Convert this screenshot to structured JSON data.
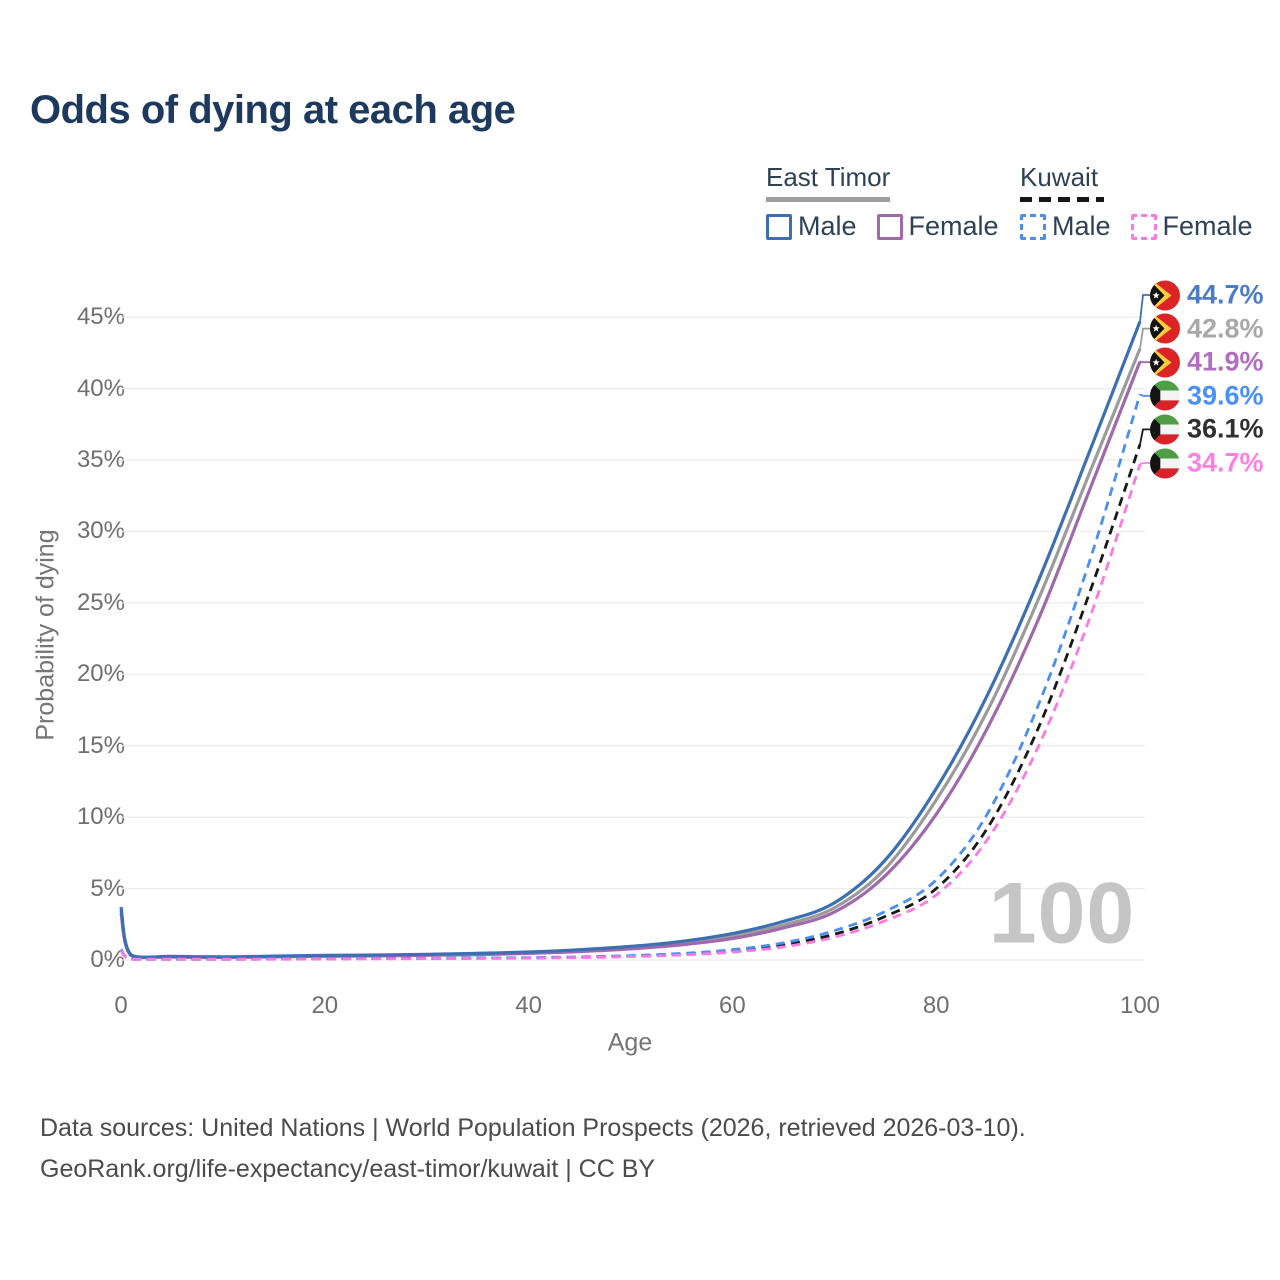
{
  "title": "Odds of dying at each age",
  "legend": {
    "groups": [
      {
        "name": "East Timor",
        "line_style": "solid",
        "line_color": "#9b9b9b",
        "items": [
          {
            "label": "Male",
            "color": "#3d6fb3"
          },
          {
            "label": "Female",
            "color": "#a069ac"
          }
        ]
      },
      {
        "name": "Kuwait",
        "line_style": "dashed",
        "line_color": "#161616",
        "items": [
          {
            "label": "Male",
            "color": "#4a8ef2"
          },
          {
            "label": "Female",
            "color": "#fb7ae2"
          }
        ]
      }
    ]
  },
  "chart_data": {
    "type": "line",
    "title": "Odds of dying at each age",
    "xlabel": "Age",
    "ylabel": "Probability of dying",
    "xlim": [
      0,
      100
    ],
    "ylim": [
      0,
      45
    ],
    "grid": "horizontal",
    "legend_position": "top-right",
    "watermark": "100",
    "xtick_labels": [
      "0",
      "20",
      "40",
      "60",
      "80",
      "100"
    ],
    "ytick_labels": [
      "0%",
      "5%",
      "10%",
      "15%",
      "20%",
      "25%",
      "30%",
      "35%",
      "40%",
      "45%"
    ],
    "x": [
      0,
      1,
      5,
      10,
      15,
      20,
      25,
      30,
      35,
      40,
      45,
      50,
      55,
      60,
      65,
      70,
      75,
      80,
      85,
      90,
      95,
      100
    ],
    "series": [
      {
        "name": "East Timor Male",
        "country": "East Timor",
        "sex": "Male",
        "flag": "east-timor",
        "color": "#3d6fb3",
        "label_color": "#4a7cc7",
        "dash": false,
        "end_label": "44.7%",
        "values": [
          3.7,
          0.35,
          0.25,
          0.22,
          0.27,
          0.32,
          0.35,
          0.4,
          0.47,
          0.56,
          0.72,
          0.95,
          1.3,
          1.85,
          2.7,
          4.0,
          7.0,
          12.0,
          18.5,
          26.5,
          35.5,
          44.7
        ]
      },
      {
        "name": "East Timor Both sexes",
        "country": "East Timor",
        "sex": "Both",
        "flag": "east-timor",
        "color": "#9b9b9b",
        "label_color": "#a8a8a8",
        "dash": false,
        "end_label": "42.8%",
        "values": [
          3.5,
          0.32,
          0.23,
          0.2,
          0.24,
          0.29,
          0.32,
          0.36,
          0.42,
          0.51,
          0.65,
          0.86,
          1.17,
          1.66,
          2.45,
          3.65,
          6.4,
          11.2,
          17.4,
          25.2,
          34.0,
          42.8
        ]
      },
      {
        "name": "East Timor Female",
        "country": "East Timor",
        "sex": "Female",
        "flag": "east-timor",
        "color": "#a069ac",
        "label_color": "#b16ec0",
        "dash": false,
        "end_label": "41.9%",
        "values": [
          3.3,
          0.3,
          0.21,
          0.18,
          0.22,
          0.26,
          0.29,
          0.33,
          0.38,
          0.46,
          0.59,
          0.78,
          1.06,
          1.5,
          2.25,
          3.35,
          5.9,
          10.2,
          16.2,
          23.8,
          32.8,
          41.9
        ]
      },
      {
        "name": "Kuwait Male",
        "country": "Kuwait",
        "sex": "Male",
        "flag": "kuwait",
        "color": "#4a8ef2",
        "label_color": "#4a90fa",
        "dash": true,
        "end_label": "39.6%",
        "values": [
          0.75,
          0.06,
          0.045,
          0.045,
          0.07,
          0.1,
          0.11,
          0.12,
          0.14,
          0.17,
          0.22,
          0.31,
          0.46,
          0.72,
          1.2,
          2.05,
          3.4,
          5.6,
          10.2,
          17.8,
          27.8,
          39.6
        ]
      },
      {
        "name": "Kuwait Both sexes",
        "country": "Kuwait",
        "sex": "Both",
        "flag": "kuwait",
        "color": "#181818",
        "label_color": "#303030",
        "dash": true,
        "end_label": "36.1%",
        "values": [
          0.7,
          0.055,
          0.04,
          0.04,
          0.06,
          0.085,
          0.095,
          0.105,
          0.125,
          0.15,
          0.195,
          0.27,
          0.4,
          0.63,
          1.05,
          1.8,
          3.05,
          5.0,
          9.2,
          16.2,
          25.6,
          36.1
        ]
      },
      {
        "name": "Kuwait Female",
        "country": "Kuwait",
        "sex": "Female",
        "flag": "kuwait",
        "color": "#fb7ae2",
        "label_color": "#ff80e2",
        "dash": true,
        "end_label": "34.7%",
        "values": [
          0.65,
          0.05,
          0.035,
          0.035,
          0.05,
          0.07,
          0.08,
          0.09,
          0.11,
          0.13,
          0.17,
          0.235,
          0.35,
          0.55,
          0.92,
          1.6,
          2.75,
          4.55,
          8.4,
          14.9,
          23.8,
          34.7
        ]
      }
    ]
  },
  "footer": {
    "line1": "Data sources: United Nations | World Population Prospects (2026, retrieved 2026-03-10).",
    "line2": "GeoRank.org/life-expectancy/east-timor/kuwait | CC BY"
  }
}
